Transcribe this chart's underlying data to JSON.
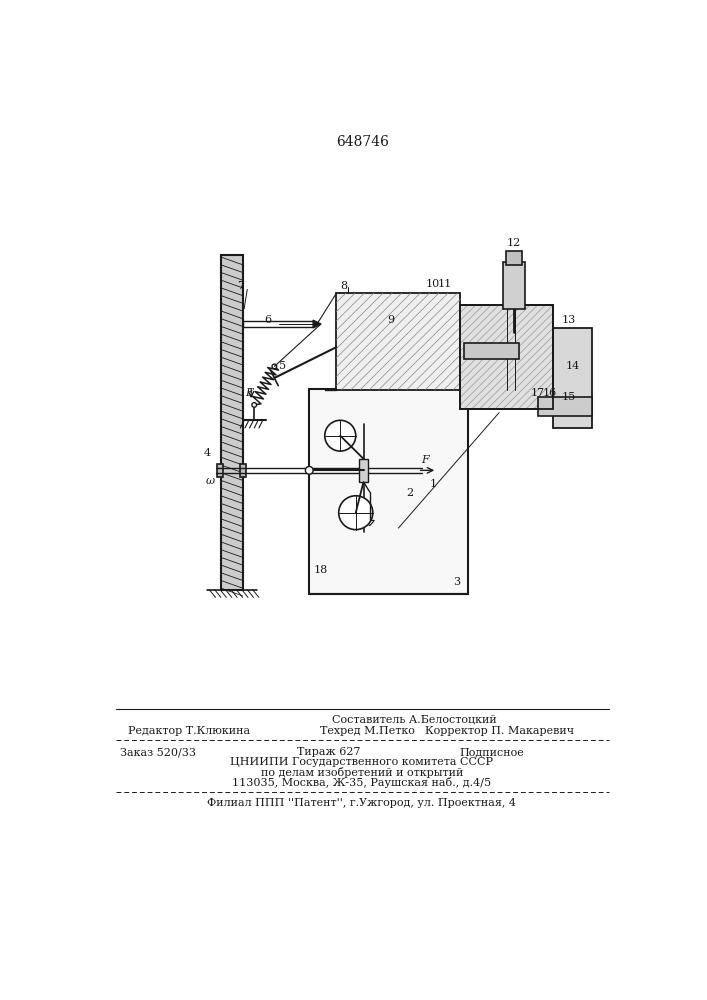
{
  "patent_number": "648746",
  "bg": "#ffffff",
  "lc": "#1a1a1a",
  "footer_sestavitel": "Составитель А.Белостоцкий",
  "footer_redaktor": "Редактор Т.Клюкина",
  "footer_tehred": "Техред М.Петко",
  "footer_korrektor": "Корректор П. Макаревич",
  "footer_zakaz": "Заказ 520/33",
  "footer_tirazh": "Тираж 627",
  "footer_podpisnoe": "Подписное",
  "footer_cniip1": "ЦНИИПИ Государственного комитета СССР",
  "footer_cniip2": "по делам изобретений и открытий",
  "footer_addr": "113035, Москва, Ж-35, Раушская наб., д.4/5",
  "footer_filial": "Филиал ППП ''Патент'', г.Ужгород, ул. Проектная, 4"
}
